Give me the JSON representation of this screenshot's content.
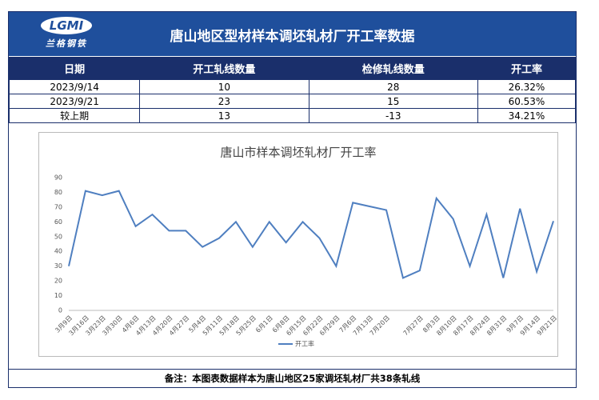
{
  "header": {
    "logo": "LGMI",
    "logo_sub": "兰格钢铁",
    "title": "唐山地区型材样本调坯轧材厂开工率数据"
  },
  "table": {
    "columns": [
      "日期",
      "开工轧线数量",
      "检修轧线数量",
      "开工率"
    ],
    "rows": [
      [
        "2023/9/14",
        "10",
        "28",
        "26.32%"
      ],
      [
        "2023/9/21",
        "23",
        "15",
        "60.53%"
      ],
      [
        "较上期",
        "13",
        "-13",
        "34.21%"
      ]
    ]
  },
  "chart_data": {
    "type": "line",
    "title": "唐山市样本调坯轧材厂开工率",
    "categories": [
      "3月9日",
      "3月16日",
      "3月23日",
      "3月30日",
      "4月6日",
      "4月13日",
      "4月20日",
      "4月27日",
      "5月4日",
      "5月11日",
      "5月18日",
      "5月25日",
      "6月1日",
      "6月8日",
      "6月15日",
      "6月22日",
      "6月29日",
      "7月6日",
      "7月13日",
      "7月20日",
      null,
      "7月27日",
      "8月3日",
      "8月10日",
      "8月17日",
      "8月24日",
      "8月31日",
      "9月7日",
      "9月14日",
      "9月21日"
    ],
    "series": [
      {
        "name": "开工率",
        "color": "#4f7fc0",
        "values": [
          30,
          81,
          78,
          81,
          57,
          65,
          54,
          54,
          43,
          49,
          60,
          43,
          60,
          46,
          60,
          49,
          30,
          73,
          70.5,
          68,
          22,
          27,
          76,
          62,
          30,
          65,
          22,
          69,
          26.32,
          60.53
        ]
      }
    ],
    "ylim": [
      0,
      90
    ],
    "yticks": [
      0,
      10,
      20,
      30,
      40,
      50,
      60,
      70,
      80,
      90
    ],
    "legend": "bottom"
  },
  "footnote": "备注：本图表数据样本为唐山地区25家调坯轧材厂共38条轧线"
}
